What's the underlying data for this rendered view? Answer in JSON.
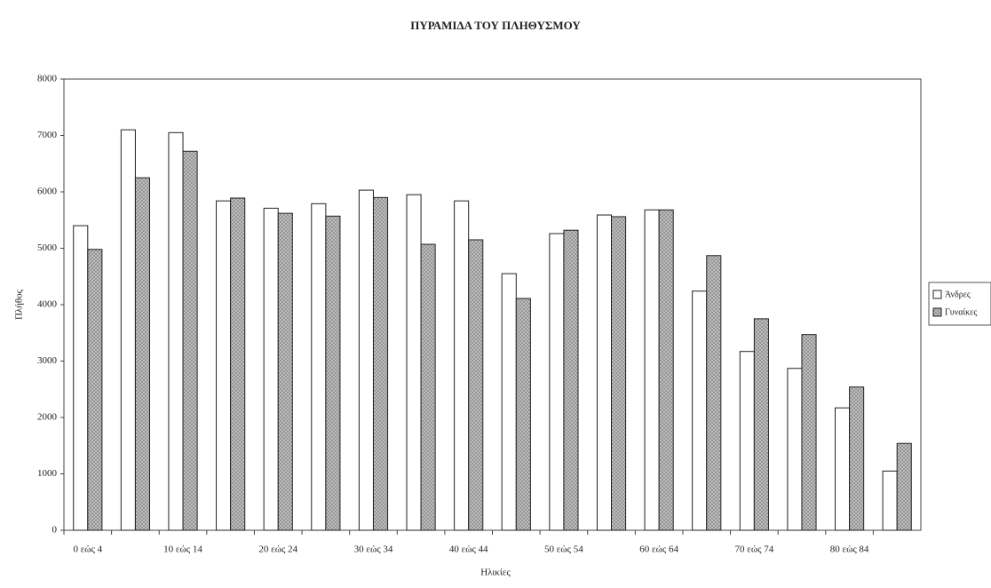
{
  "chart_data": {
    "type": "bar",
    "title": "ΠΥΡΑΜΙΔΑ ΤΟΥ ΠΛΗΘΥΣΜΟΥ",
    "xlabel": "Ηλικίες",
    "ylabel": "Πλήθος",
    "categories": [
      "0 εώς 4",
      null,
      "10 εώς 14",
      null,
      "20 εώς 24",
      null,
      "30 εώς 34",
      null,
      "40 εώς 44",
      null,
      "50 εώς 54",
      null,
      "60 εώς 64",
      null,
      "70 εώς 74",
      null,
      "80 εώς 84",
      null
    ],
    "series": [
      {
        "name": "Άνδρες",
        "color": "#ffffff",
        "values": [
          5400,
          7100,
          7050,
          5840,
          5710,
          5790,
          6030,
          5950,
          5840,
          4550,
          5260,
          5590,
          5680,
          4240,
          3170,
          2870,
          2170,
          1050
        ]
      },
      {
        "name": "Γυναίκες",
        "color": "#8a8a8a",
        "values": [
          4980,
          6250,
          6720,
          5890,
          5620,
          5570,
          5900,
          5070,
          5150,
          4110,
          5320,
          5560,
          5680,
          4870,
          3750,
          3470,
          2540,
          1540
        ]
      }
    ],
    "ylim": [
      0,
      8000
    ],
    "yticks": [
      0,
      1000,
      2000,
      3000,
      4000,
      5000,
      6000,
      7000,
      8000
    ],
    "legend": "right"
  }
}
